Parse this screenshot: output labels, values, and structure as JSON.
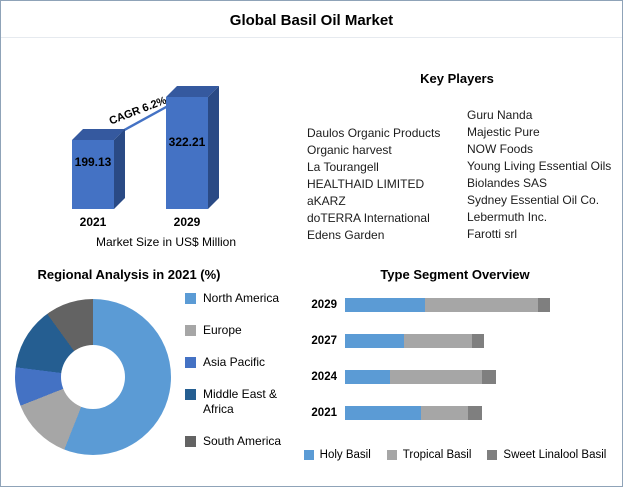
{
  "title": "Global Basil Oil Market",
  "key_players": {
    "title": "Key Players",
    "column1": [
      "Daulos Organic Products",
      "Organic harvest",
      "La Tourangell",
      "HEALTHAID LIMITED",
      "aKARZ",
      "doTERRA International",
      "Edens Garden"
    ],
    "column2": [
      "Guru Nanda",
      "Majestic Pure",
      "NOW Foods",
      "Young Living Essential Oils",
      "Biolandes SAS",
      "Sydney Essential Oil Co.",
      "Lebermuth Inc.",
      "Farotti srl"
    ]
  },
  "chart_data": [
    {
      "id": "market-size",
      "type": "bar",
      "title": "Market Size in US$ Million",
      "categories": [
        "2021",
        "2029"
      ],
      "values": [
        199.13,
        322.21
      ],
      "value_labels": [
        "199.13",
        "322.21"
      ],
      "annotation": "CAGR 6.2%",
      "ylim": [
        0,
        350
      ],
      "bar_color": "#4472C4",
      "bar_top_color": "#35599F",
      "bar_side_color": "#2A4A85"
    },
    {
      "id": "regional-analysis",
      "type": "pie",
      "title": "Regional Analysis in 2021 (%)",
      "labels": [
        "North America",
        "Europe",
        "Asia Pacific",
        "Middle East & Africa",
        "South America"
      ],
      "values": [
        56,
        13,
        8,
        13,
        10
      ],
      "colors": [
        "#5B9BD5",
        "#A6A6A6",
        "#4472C4",
        "#255E91",
        "#636363"
      ],
      "hole": 0.42,
      "legend_position": "right"
    },
    {
      "id": "type-segment",
      "type": "bar-horizontal-stacked",
      "title": "Type Segment Overview",
      "categories": [
        "2029",
        "2027",
        "2024",
        "2021"
      ],
      "series": [
        {
          "name": "Holy Basil",
          "color": "#5B9BD5",
          "values": [
            39,
            29,
            22,
            37
          ]
        },
        {
          "name": "Tropical Basil",
          "color": "#A6A6A6",
          "values": [
            55,
            33,
            45,
            23
          ]
        },
        {
          "name": "Sweet Linalool Basil",
          "color": "#7F7F7F",
          "values": [
            6,
            6,
            7,
            7
          ]
        }
      ],
      "xlim": [
        0,
        100
      ],
      "legend_position": "bottom"
    }
  ]
}
